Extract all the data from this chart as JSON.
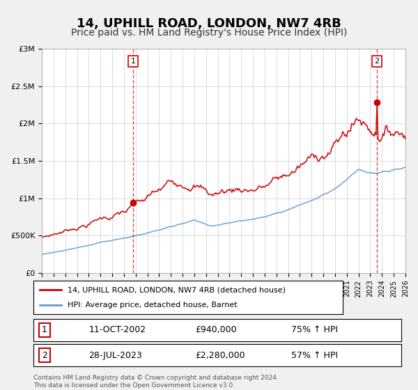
{
  "title": "14, UPHILL ROAD, LONDON, NW7 4RB",
  "subtitle": "Price paid vs. HM Land Registry's House Price Index (HPI)",
  "title_fontsize": 13,
  "subtitle_fontsize": 10,
  "red_line_label": "14, UPHILL ROAD, LONDON, NW7 4RB (detached house)",
  "blue_line_label": "HPI: Average price, detached house, Barnet",
  "red_color": "#cc0000",
  "blue_color": "#6699cc",
  "sale1_date_x": 2002.78,
  "sale1_price": 940000,
  "sale1_label": "1",
  "sale1_text": "11-OCT-2002",
  "sale1_amount": "£940,000",
  "sale1_pct": "75% ↑ HPI",
  "sale2_date_x": 2023.57,
  "sale2_price": 2280000,
  "sale2_label": "2",
  "sale2_text": "28-JUL-2023",
  "sale2_amount": "£2,280,000",
  "sale2_pct": "57% ↑ HPI",
  "xmin": 1995,
  "xmax": 2026,
  "ymin": 0,
  "ymax": 3000000,
  "yticks": [
    0,
    500000,
    1000000,
    1500000,
    2000000,
    2500000,
    3000000
  ],
  "ytick_labels": [
    "£0",
    "£500K",
    "£1M",
    "£1.5M",
    "£2M",
    "£2.5M",
    "£3M"
  ],
  "footer_line1": "Contains HM Land Registry data © Crown copyright and database right 2024.",
  "footer_line2": "This data is licensed under the Open Government Licence v3.0.",
  "background_color": "#f0f0f0",
  "plot_bg_color": "#ffffff"
}
